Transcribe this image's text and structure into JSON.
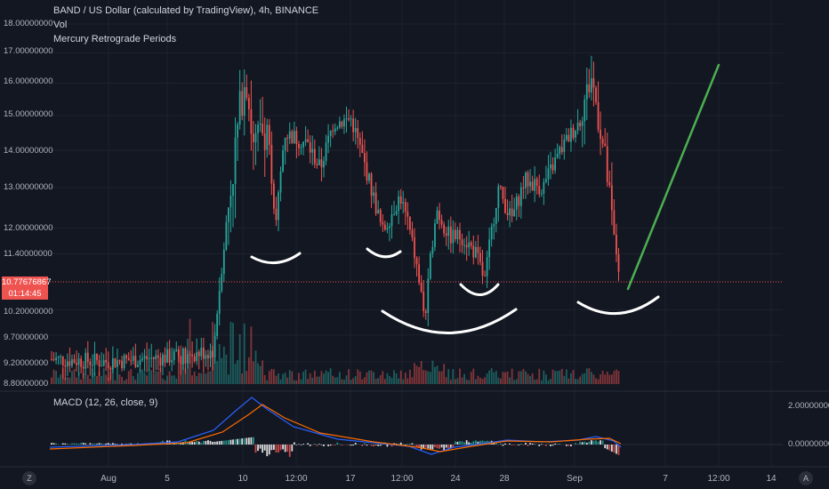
{
  "header": {
    "title": "BAND / US Dollar (calculated by TradingView), 4h, BINANCE",
    "indicator1": "Vol",
    "indicator2": "Mercury Retrograde Periods"
  },
  "macd_label": "MACD (12, 26, close, 9)",
  "price_axis_labels": [
    "18.00000000",
    "17.00000000",
    "16.00000000",
    "15.00000000",
    "14.00000000",
    "13.00000000",
    "12.00000000",
    "11.40000000",
    "10.20000000",
    "9.70000000",
    "9.20000000",
    "8.80000000"
  ],
  "current_price": "10.77676867",
  "countdown": "01:14:45",
  "macd_axis_labels": [
    "2.00000000",
    "0.00000000"
  ],
  "time_axis_labels": [
    "Aug",
    "5",
    "10",
    "12:00",
    "17",
    "12:00",
    "24",
    "28",
    "Sep",
    "7",
    "12:00",
    "14"
  ],
  "zoom_left": "Z",
  "zoom_right": "A",
  "colors": {
    "up": "#26a69a",
    "down": "#ef5350",
    "background": "#131722",
    "macd": "#2962ff",
    "signal": "#ff6d00",
    "annotation_line": "#4caf50",
    "annotation_arc": "#ffffff"
  },
  "chart_data": {
    "type": "candlestick",
    "symbol": "BAND / US Dollar",
    "interval": "4h",
    "exchange": "BINANCE",
    "ylim": [
      8.8,
      18.0
    ],
    "y_scale": "log",
    "points": [
      {
        "label": "Aug",
        "close": 9.2
      },
      {
        "label": "5",
        "close": 9.3
      },
      {
        "label": "10",
        "close": 15.0
      },
      {
        "label": "12:00",
        "close": 13.5
      },
      {
        "label": "17",
        "close": 14.8
      },
      {
        "label": "12:00",
        "close": 11.8
      },
      {
        "label": "24",
        "close": 11.6
      },
      {
        "label": "28",
        "close": 12.8
      },
      {
        "label": "Sep",
        "close": 16.0
      },
      {
        "label": "",
        "close": 10.78
      }
    ],
    "macd": {
      "name": "MACD (12, 26, close, 9)",
      "ylim": [
        -1.0,
        2.4
      ]
    }
  }
}
